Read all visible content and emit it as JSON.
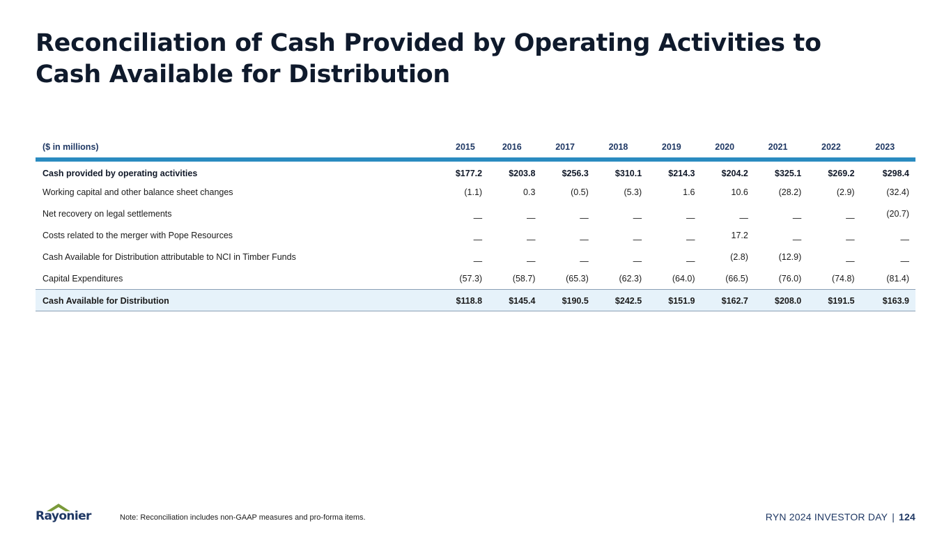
{
  "title": {
    "line1": "Reconciliation of Cash Provided by Operating Activities to",
    "line2": "Cash Available for Distribution"
  },
  "table": {
    "header": {
      "label": "($ in millions)",
      "years": [
        "2015",
        "2016",
        "2017",
        "2018",
        "2019",
        "2020",
        "2021",
        "2022",
        "2023"
      ]
    },
    "rows": [
      {
        "label": "Cash provided by operating activities",
        "values": [
          "$177.2",
          "$203.8",
          "$256.3",
          "$310.1",
          "$214.3",
          "$204.2",
          "$325.1",
          "$269.2",
          "$298.4"
        ]
      },
      {
        "label": "Working capital and other balance sheet changes",
        "values": [
          "(1.1)",
          "0.3",
          "(0.5)",
          "(5.3)",
          "1.6",
          "10.6",
          "(28.2)",
          "(2.9)",
          "(32.4)"
        ]
      },
      {
        "label": "Net recovery on legal settlements",
        "values": [
          "—",
          "—",
          "—",
          "—",
          "—",
          "—",
          "—",
          "—",
          "(20.7)"
        ]
      },
      {
        "label": "Costs related to the merger with Pope Resources",
        "values": [
          "—",
          "—",
          "—",
          "—",
          "—",
          "17.2",
          "—",
          "—",
          "—"
        ]
      },
      {
        "label": "Cash Available for Distribution attributable to NCI in Timber Funds",
        "values": [
          "—",
          "—",
          "—",
          "—",
          "—",
          "(2.8)",
          "(12.9)",
          "—",
          "—"
        ]
      },
      {
        "label": "Capital Expenditures",
        "values": [
          "(57.3)",
          "(58.7)",
          "(65.3)",
          "(62.3)",
          "(64.0)",
          "(66.5)",
          "(76.0)",
          "(74.8)",
          "(81.4)"
        ]
      },
      {
        "label": "Cash Available for Distribution",
        "values": [
          "$118.8",
          "$145.4",
          "$190.5",
          "$242.5",
          "$151.9",
          "$162.7",
          "$208.0",
          "$191.5",
          "$163.9"
        ]
      }
    ]
  },
  "logo": {
    "text": "Rayonier",
    "accent_color": "#7a9a3a"
  },
  "note": "Note: Reconciliation includes non-GAAP measures and pro-forma items.",
  "footer": {
    "event": "RYN 2024 INVESTOR DAY",
    "separator": "|",
    "page": "124"
  }
}
